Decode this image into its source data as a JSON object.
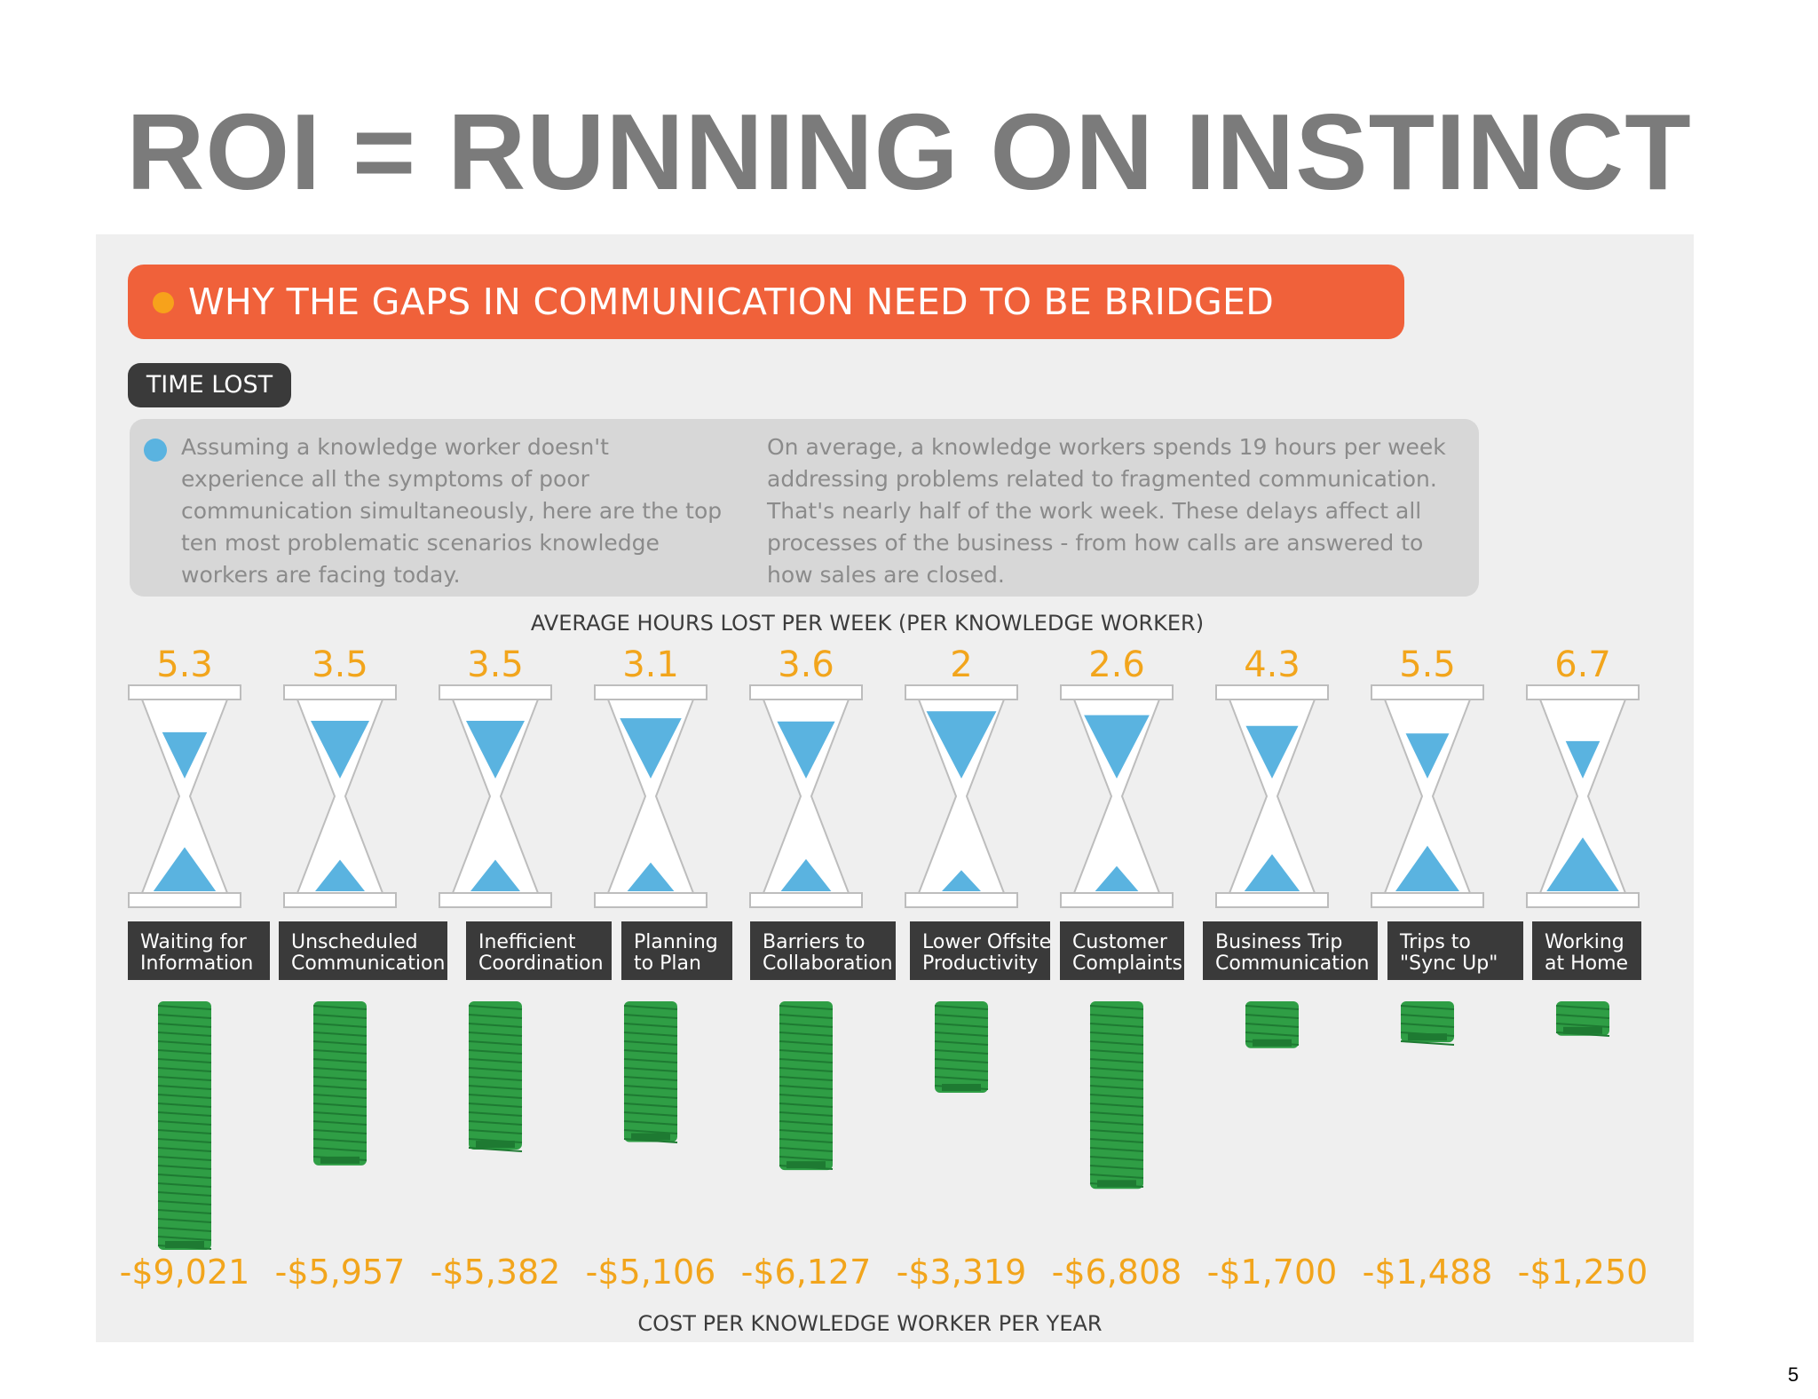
{
  "slide": {
    "title": "ROI = RUNNING ON INSTINCT",
    "page_number": "5"
  },
  "banner": {
    "text": "WHY THE GAPS IN COMMUNICATION NEED TO BE BRIDGED"
  },
  "badge": {
    "text": "TIME LOST"
  },
  "description": {
    "left": "Assuming a knowledge worker doesn't experience all the symptoms of poor communication simultaneously, here are the top ten most problematic scenarios knowledge workers are facing today.",
    "right": "On average, a knowledge workers spends 19 hours per week addressing problems related to fragmented communication. That's nearly half of the work week. These delays affect all processes of the business - from how calls are answered to how sales are closed."
  },
  "colors": {
    "accent_orange": "#f0613a",
    "value_orange": "#f2a51c",
    "sand_blue": "#5ab3e0",
    "money_green": "#2f9e45",
    "label_dark": "#3a3a3a"
  },
  "chart_data": {
    "type": "table",
    "top_label": "AVERAGE HOURS LOST PER WEEK (PER KNOWLEDGE WORKER)",
    "bottom_label": "COST PER KNOWLEDGE WORKER PER YEAR",
    "categories": [
      "Waiting for Information",
      "Unscheduled Communication",
      "Inefficient Coordination",
      "Planning to Plan",
      "Barriers to Collaboration",
      "Lower Offsite Productivity",
      "Customer Complaints",
      "Business Trip Communication",
      "Trips to \"Sync Up\"",
      "Working at Home"
    ],
    "category_lines": [
      [
        "Waiting for",
        "Information"
      ],
      [
        "Unscheduled",
        "Communication"
      ],
      [
        "Inefficient",
        "Coordination"
      ],
      [
        "Planning",
        "to Plan"
      ],
      [
        "Barriers to",
        "Collaboration"
      ],
      [
        "Lower Offsite",
        "Productivity"
      ],
      [
        "Customer",
        "Complaints"
      ],
      [
        "Business Trip",
        "Communication"
      ],
      [
        "Trips to",
        "\"Sync Up\""
      ],
      [
        "Working",
        "at Home"
      ]
    ],
    "series": [
      {
        "name": "hours",
        "values": [
          5.3,
          3.5,
          3.5,
          3.1,
          3.6,
          2,
          2.6,
          4.3,
          5.5,
          6.7
        ],
        "labels": [
          "5.3",
          "3.5",
          "3.5",
          "3.1",
          "3.6",
          "2",
          "2.6",
          "4.3",
          "5.5",
          "6.7"
        ]
      },
      {
        "name": "cost",
        "values": [
          -9021,
          -5957,
          -5382,
          -5106,
          -6127,
          -3319,
          -6808,
          -1700,
          -1488,
          -1250
        ],
        "labels": [
          "-$9,021",
          "-$5,957",
          "-$5,382",
          "-$5,106",
          "-$6,127",
          "-$3,319",
          "-$6,808",
          "-$1,700",
          "-$1,488",
          "-$1,250"
        ]
      }
    ]
  }
}
